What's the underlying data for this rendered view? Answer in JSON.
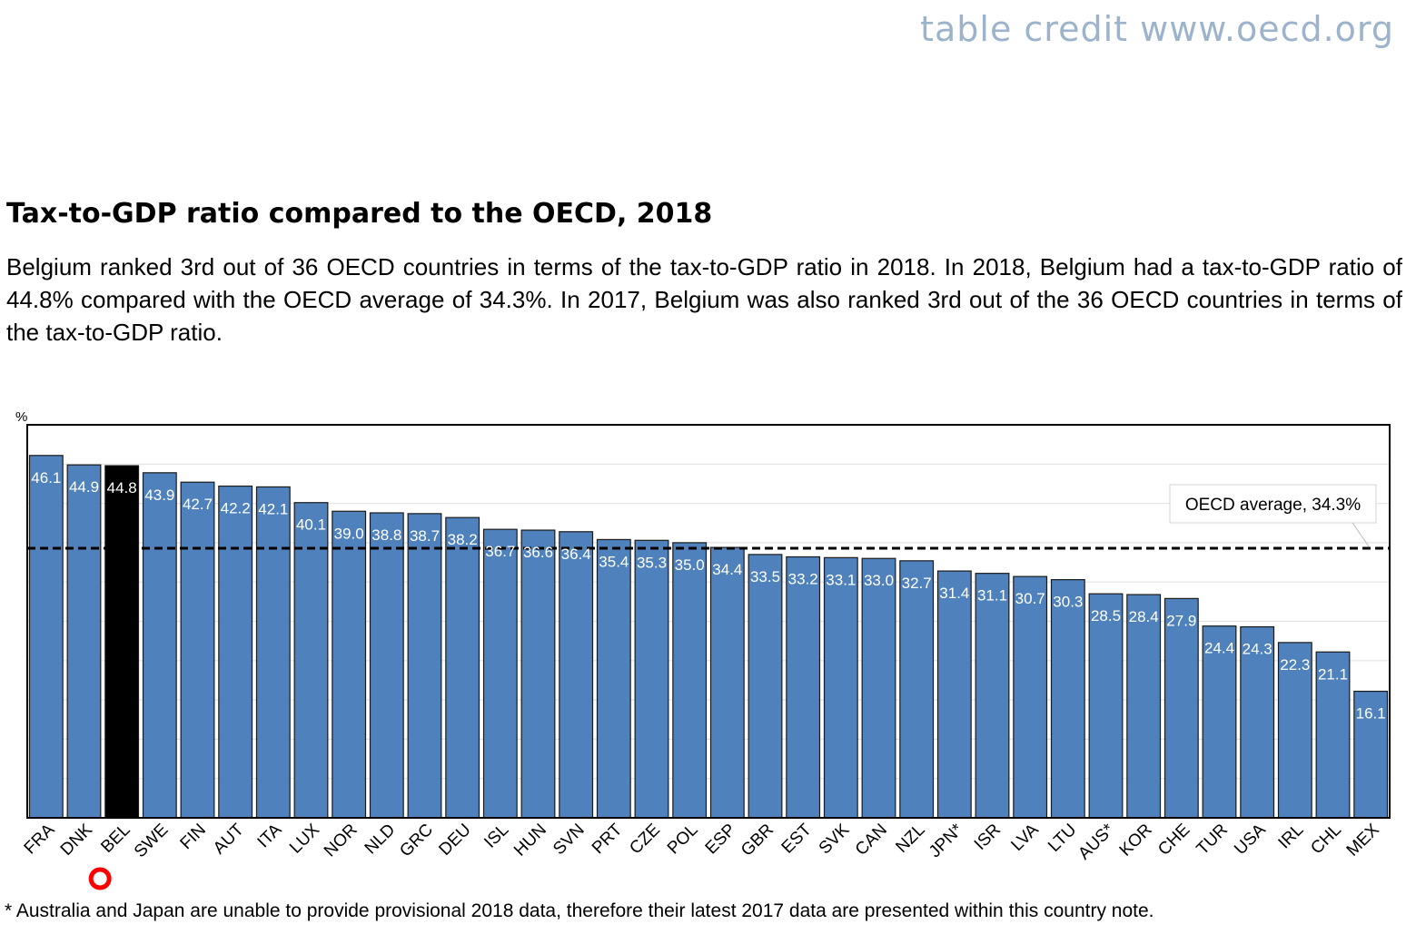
{
  "credit": "table credit www.oecd.org",
  "heading": "Tax-to-GDP ratio compared to the OECD, 2018",
  "description": "Belgium ranked 3rd out of 36 OECD countries in terms of the tax-to-GDP ratio in 2018. In 2018, Belgium had a tax-to-GDP ratio of 44.8% compared with the OECD average of 34.3%. In 2017, Belgium was also ranked 3rd out of the 36 OECD countries in terms of the tax-to-GDP ratio.",
  "footnote": "* Australia and Japan are unable to provide provisional 2018 data, therefore their latest 2017 data are presented within this country note.",
  "chart_data": {
    "type": "bar",
    "ylabel": "%",
    "ylim": [
      0,
      50
    ],
    "grid": true,
    "categories": [
      "FRA",
      "DNK",
      "BEL",
      "SWE",
      "FIN",
      "AUT",
      "ITA",
      "LUX",
      "NOR",
      "NLD",
      "GRC",
      "DEU",
      "ISL",
      "HUN",
      "SVN",
      "PRT",
      "CZE",
      "POL",
      "ESP",
      "GBR",
      "EST",
      "SVK",
      "CAN",
      "NZL",
      "JPN*",
      "ISR",
      "LVA",
      "LTU",
      "AUS*",
      "KOR",
      "CHE",
      "TUR",
      "USA",
      "IRL",
      "CHL",
      "MEX"
    ],
    "values": [
      46.1,
      44.9,
      44.8,
      43.9,
      42.7,
      42.2,
      42.1,
      40.1,
      39.0,
      38.8,
      38.7,
      38.2,
      36.7,
      36.6,
      36.4,
      35.4,
      35.3,
      35.0,
      34.4,
      33.5,
      33.2,
      33.1,
      33.0,
      32.7,
      31.4,
      31.1,
      30.7,
      30.3,
      28.5,
      28.4,
      27.9,
      24.4,
      24.3,
      22.3,
      21.1,
      16.1
    ],
    "value_labels": [
      "46.1",
      "44.9",
      "44.8",
      "43.9",
      "42.7",
      "42.2",
      "42.1",
      "40.1",
      "39.0",
      "38.8",
      "38.7",
      "38.2",
      "36.7",
      "36.6",
      "36.4",
      "35.4",
      "35.3",
      "35.0",
      "34.4",
      "33.5",
      "33.2",
      "33.1",
      "33.0",
      "32.7",
      "31.4",
      "31.1",
      "30.7",
      "30.3",
      "28.5",
      "28.4",
      "27.9",
      "24.4",
      "24.3",
      "22.3",
      "21.1",
      "16.1"
    ],
    "highlight_category": "BEL",
    "average": {
      "label": "OECD average, 34.3%",
      "value": 34.3
    },
    "colors": {
      "bar": "#4f81bd",
      "highlight": "#000000",
      "average_line": "#000000",
      "marker": "#ff0000"
    }
  }
}
